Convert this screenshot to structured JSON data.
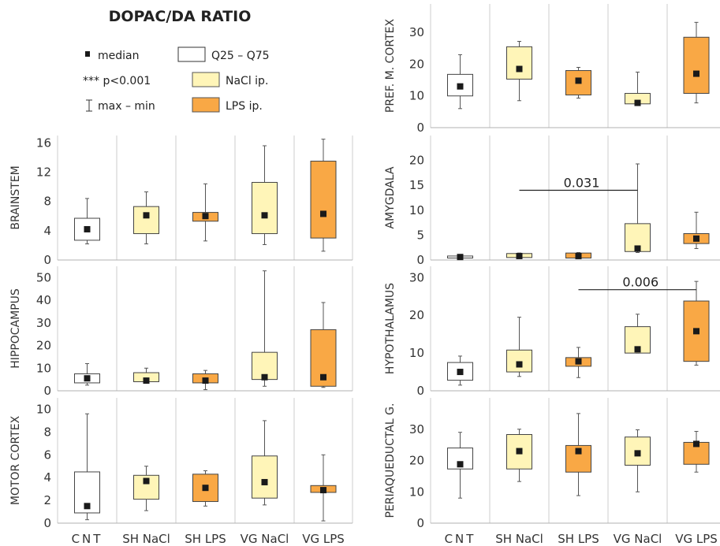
{
  "figure": {
    "title": "DOPAC/DA RATIO",
    "categories": [
      "CNT",
      "SH NaCl",
      "SH LPS",
      "VG NaCl",
      "VG LPS"
    ],
    "legend": {
      "median": "median",
      "iqr": "Q25 – Q75",
      "significance": "*** p<0.001",
      "range": "max – min",
      "nacl": "NaCl ip.",
      "lps": "LPS ip."
    },
    "colors": {
      "cnt": "#ffffff",
      "nacl": "#fff5b8",
      "lps": "#f9a845",
      "marker": "#1a1a1a",
      "grid": "#cccccc"
    }
  },
  "chart_data": [
    {
      "type": "box",
      "ylabel": "BRAINSTEM",
      "ylim": [
        0,
        17
      ],
      "yticks": [
        0,
        4,
        8,
        12,
        16
      ],
      "boxes": [
        {
          "category": "CNT",
          "group": "cnt",
          "min": 2.2,
          "q25": 2.7,
          "median": 4.2,
          "q75": 5.7,
          "max": 8.4
        },
        {
          "category": "SH NaCl",
          "group": "nacl",
          "min": 2.2,
          "q25": 3.6,
          "median": 6.1,
          "q75": 7.3,
          "max": 9.3
        },
        {
          "category": "SH LPS",
          "group": "lps",
          "min": 2.6,
          "q25": 5.3,
          "median": 6.0,
          "q75": 6.5,
          "max": 10.4
        },
        {
          "category": "VG NaCl",
          "group": "nacl",
          "min": 2.1,
          "q25": 3.6,
          "median": 6.1,
          "q75": 10.6,
          "max": 15.6
        },
        {
          "category": "VG LPS",
          "group": "lps",
          "min": 1.2,
          "q25": 3.0,
          "median": 6.3,
          "q75": 13.5,
          "max": 16.5
        }
      ],
      "annotations": []
    },
    {
      "type": "box",
      "ylabel": "HIPPOCAMPUS",
      "ylim": [
        0,
        55
      ],
      "yticks": [
        0,
        10,
        20,
        30,
        40,
        50
      ],
      "boxes": [
        {
          "category": "CNT",
          "group": "cnt",
          "min": 2.5,
          "q25": 3.5,
          "median": 5.5,
          "q75": 7.5,
          "max": 12.0
        },
        {
          "category": "SH NaCl",
          "group": "nacl",
          "min": 3.5,
          "q25": 4.0,
          "median": 4.5,
          "q75": 8.0,
          "max": 10.0
        },
        {
          "category": "SH LPS",
          "group": "lps",
          "min": 0.5,
          "q25": 3.5,
          "median": 4.5,
          "q75": 7.5,
          "max": 9.0
        },
        {
          "category": "VG NaCl",
          "group": "nacl",
          "min": 2.0,
          "q25": 5.0,
          "median": 6.0,
          "q75": 17.0,
          "max": 53.0
        },
        {
          "category": "VG LPS",
          "group": "lps",
          "min": 1.5,
          "q25": 2.0,
          "median": 6.0,
          "q75": 27.0,
          "max": 39.0
        }
      ],
      "annotations": []
    },
    {
      "type": "box",
      "ylabel": "MOTOR CORTEX",
      "ylim": [
        0,
        11
      ],
      "yticks": [
        0,
        2,
        4,
        6,
        8,
        10
      ],
      "boxes": [
        {
          "category": "CNT",
          "group": "cnt",
          "min": 0.3,
          "q25": 0.9,
          "median": 1.5,
          "q75": 4.5,
          "max": 9.6
        },
        {
          "category": "SH NaCl",
          "group": "nacl",
          "min": 1.1,
          "q25": 2.1,
          "median": 3.7,
          "q75": 4.2,
          "max": 5.0
        },
        {
          "category": "SH LPS",
          "group": "lps",
          "min": 1.5,
          "q25": 1.9,
          "median": 3.1,
          "q75": 4.3,
          "max": 4.6
        },
        {
          "category": "VG NaCl",
          "group": "nacl",
          "min": 1.6,
          "q25": 2.2,
          "median": 3.6,
          "q75": 5.9,
          "max": 9.0
        },
        {
          "category": "VG LPS",
          "group": "lps",
          "min": 0.2,
          "q25": 2.7,
          "median": 2.9,
          "q75": 3.3,
          "max": 6.0
        }
      ],
      "annotations": []
    },
    {
      "type": "box",
      "ylabel": "PREF. M. CORTEX",
      "ylim": [
        0,
        39
      ],
      "yticks": [
        0,
        10,
        20,
        30
      ],
      "boxes": [
        {
          "category": "CNT",
          "group": "cnt",
          "min": 6.0,
          "q25": 10.0,
          "median": 13.0,
          "q75": 16.8,
          "max": 23.0
        },
        {
          "category": "SH NaCl",
          "group": "nacl",
          "min": 8.5,
          "q25": 15.3,
          "median": 18.5,
          "q75": 25.5,
          "max": 27.2
        },
        {
          "category": "SH LPS",
          "group": "lps",
          "min": 9.3,
          "q25": 10.3,
          "median": 14.8,
          "q75": 18.0,
          "max": 19.0
        },
        {
          "category": "VG NaCl",
          "group": "nacl",
          "min": 7.0,
          "q25": 7.5,
          "median": 7.8,
          "q75": 10.8,
          "max": 17.5
        },
        {
          "category": "VG LPS",
          "group": "lps",
          "min": 7.8,
          "q25": 10.8,
          "median": 17.0,
          "q75": 28.5,
          "max": 33.2
        }
      ],
      "annotations": []
    },
    {
      "type": "box",
      "ylabel": "AMYGDALA",
      "ylim": [
        0,
        25
      ],
      "yticks": [
        0,
        5,
        10,
        15,
        20
      ],
      "boxes": [
        {
          "category": "CNT",
          "group": "cnt",
          "min": 0.3,
          "q25": 0.4,
          "median": 0.6,
          "q75": 0.8,
          "max": 0.9
        },
        {
          "category": "SH NaCl",
          "group": "nacl",
          "min": 0.4,
          "q25": 0.5,
          "median": 0.8,
          "q75": 1.3,
          "max": 1.4
        },
        {
          "category": "SH LPS",
          "group": "lps",
          "min": 0.3,
          "q25": 0.4,
          "median": 0.8,
          "q75": 1.4,
          "max": 1.5
        },
        {
          "category": "VG NaCl",
          "group": "nacl",
          "min": 1.5,
          "q25": 1.7,
          "median": 2.3,
          "q75": 7.3,
          "max": 19.3
        },
        {
          "category": "VG LPS",
          "group": "lps",
          "min": 2.3,
          "q25": 3.3,
          "median": 4.3,
          "q75": 5.3,
          "max": 9.6
        }
      ],
      "annotations": [
        {
          "from": 1,
          "to": 3,
          "y": 14.0,
          "label": "0.031"
        }
      ]
    },
    {
      "type": "box",
      "ylabel": "HYPOTHALAMUS",
      "ylim": [
        0,
        33
      ],
      "yticks": [
        0,
        10,
        20,
        30
      ],
      "boxes": [
        {
          "category": "CNT",
          "group": "cnt",
          "min": 1.5,
          "q25": 2.8,
          "median": 5.0,
          "q75": 7.5,
          "max": 9.2
        },
        {
          "category": "SH NaCl",
          "group": "nacl",
          "min": 3.8,
          "q25": 5.0,
          "median": 7.0,
          "q75": 10.8,
          "max": 19.5
        },
        {
          "category": "SH LPS",
          "group": "lps",
          "min": 3.5,
          "q25": 6.5,
          "median": 7.8,
          "q75": 8.8,
          "max": 11.5
        },
        {
          "category": "VG NaCl",
          "group": "nacl",
          "min": 10.0,
          "q25": 10.0,
          "median": 11.0,
          "q75": 17.0,
          "max": 20.3
        },
        {
          "category": "VG LPS",
          "group": "lps",
          "min": 6.8,
          "q25": 7.8,
          "median": 15.8,
          "q75": 23.8,
          "max": 29.0
        }
      ],
      "annotations": [
        {
          "from": 2,
          "to": 4,
          "y": 26.8,
          "label": "0.006"
        }
      ]
    },
    {
      "type": "box",
      "ylabel": "PERIAQUEDUCTAL G.",
      "ylim": [
        0,
        40
      ],
      "yticks": [
        0,
        10,
        20,
        30
      ],
      "boxes": [
        {
          "category": "CNT",
          "group": "cnt",
          "min": 8.0,
          "q25": 17.3,
          "median": 18.8,
          "q75": 24.0,
          "max": 29.0
        },
        {
          "category": "SH NaCl",
          "group": "nacl",
          "min": 13.3,
          "q25": 17.3,
          "median": 23.0,
          "q75": 28.3,
          "max": 30.0
        },
        {
          "category": "SH LPS",
          "group": "lps",
          "min": 8.8,
          "q25": 16.3,
          "median": 23.0,
          "q75": 24.8,
          "max": 35.0
        },
        {
          "category": "VG NaCl",
          "group": "nacl",
          "min": 10.0,
          "q25": 18.5,
          "median": 22.3,
          "q75": 27.5,
          "max": 29.8
        },
        {
          "category": "VG LPS",
          "group": "lps",
          "min": 16.3,
          "q25": 18.8,
          "median": 25.3,
          "q75": 25.8,
          "max": 29.3
        }
      ],
      "annotations": []
    }
  ]
}
